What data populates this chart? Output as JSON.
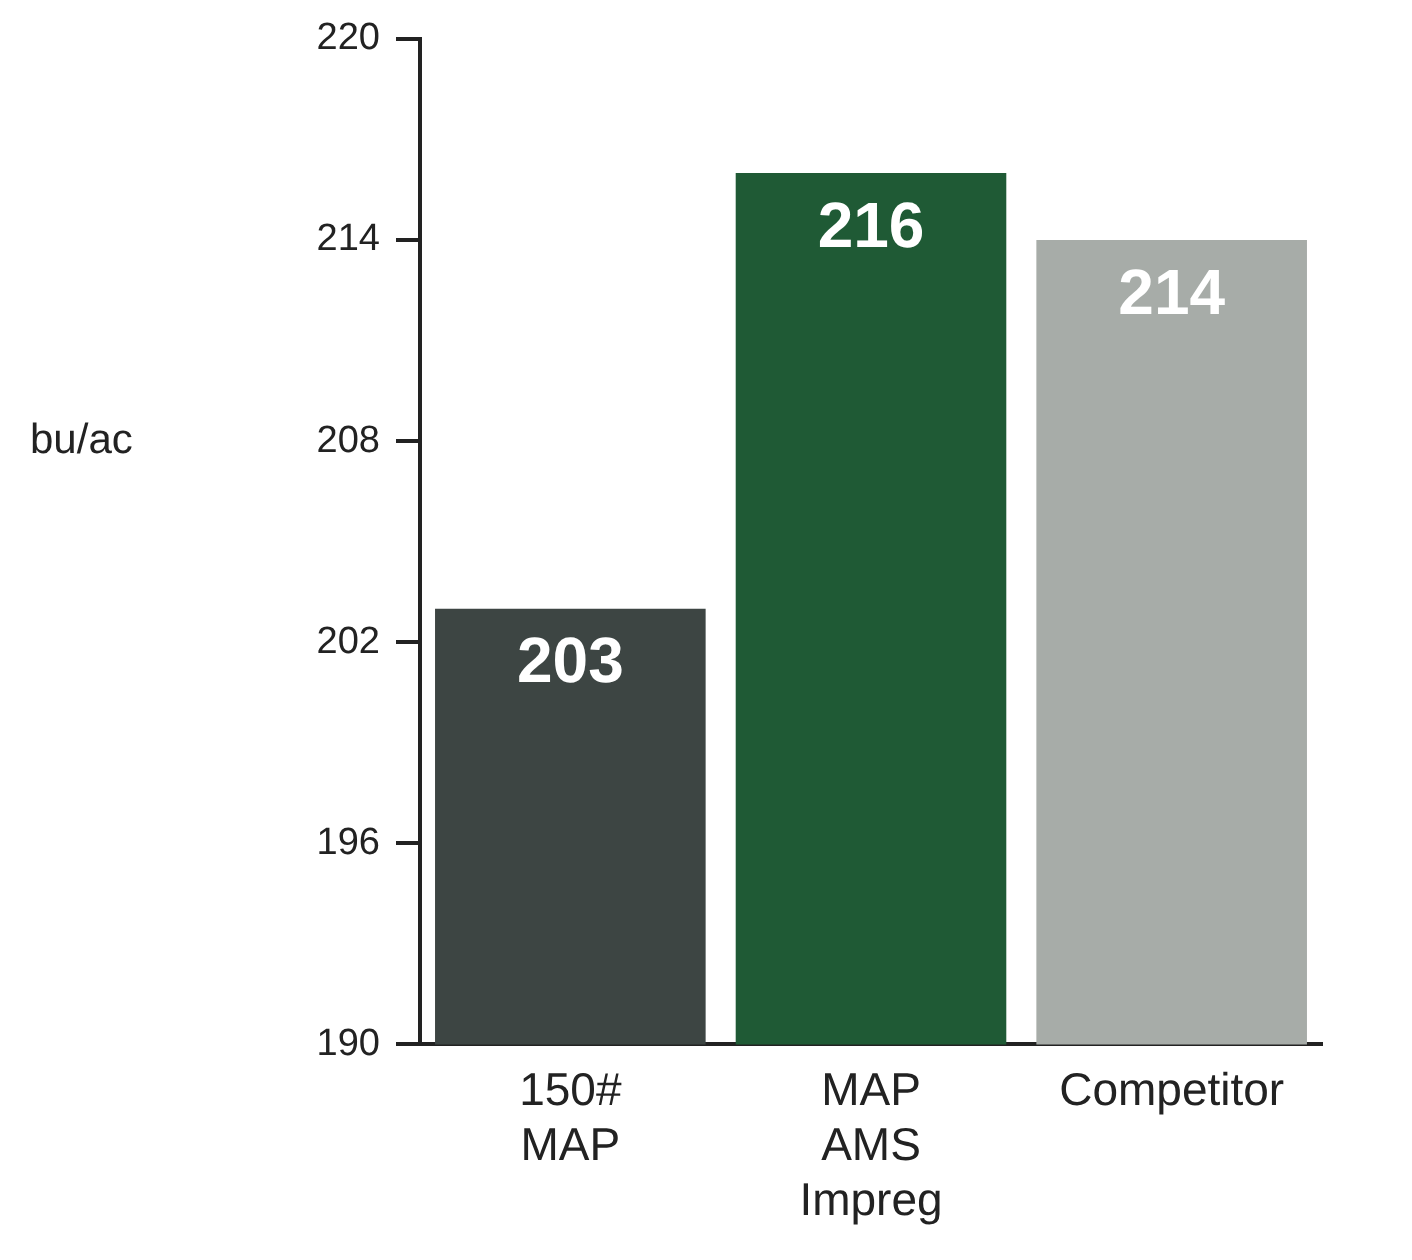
{
  "chart_data": {
    "type": "bar",
    "ylabel": "bu/ac",
    "categories": [
      "150# MAP",
      "MAP AMS Impreg",
      "Competitor"
    ],
    "values": [
      203,
      216,
      214
    ],
    "colors": [
      "#3d4543",
      "#1f5a35",
      "#a7aca8"
    ],
    "ylim": [
      190,
      220
    ],
    "yticks": [
      190,
      196,
      202,
      208,
      214,
      220
    ],
    "data_labels": true,
    "grid": false,
    "legend": false
  }
}
